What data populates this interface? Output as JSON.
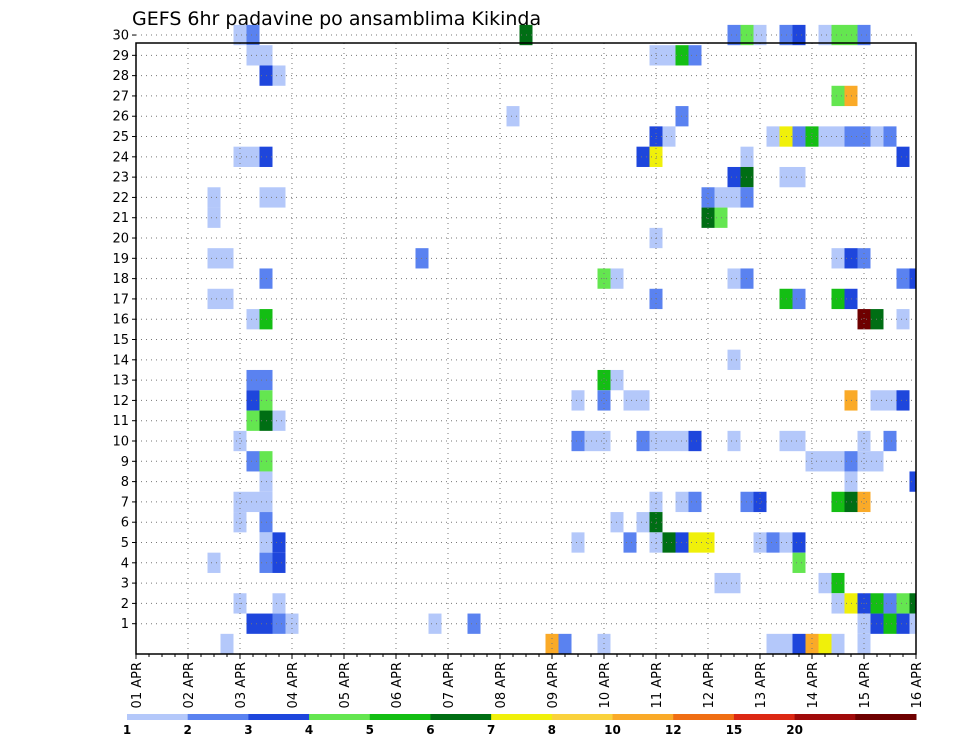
{
  "chart_data": {
    "type": "heatmap",
    "title": "GEFS 6hr padavine po ansamblima Kikinda",
    "xlabel": "",
    "ylabel": "",
    "x_tick_labels": [
      "01 APR",
      "02 APR",
      "03 APR",
      "04 APR",
      "05 APR",
      "06 APR",
      "07 APR",
      "08 APR",
      "09 APR",
      "10 APR",
      "11 APR",
      "12 APR",
      "13 APR",
      "14 APR",
      "15 APR",
      "16 APR"
    ],
    "x_unit": "6-hour step from 01 APR 00Z (4 steps per day)",
    "xlim": [
      0,
      60
    ],
    "y_tick_labels": [
      "1",
      "2",
      "3",
      "4",
      "5",
      "6",
      "7",
      "8",
      "9",
      "10",
      "11",
      "12",
      "13",
      "14",
      "15",
      "16",
      "17",
      "18",
      "19",
      "20",
      "21",
      "22",
      "23",
      "24",
      "25",
      "26",
      "27",
      "28",
      "29",
      "30"
    ],
    "ylim": [
      0,
      30
    ],
    "grid": true,
    "colorbar": {
      "levels": [
        "1",
        "2",
        "3",
        "4",
        "5",
        "6",
        "7",
        "8",
        "10",
        "12",
        "15",
        "20"
      ],
      "colors": [
        "#b4c8fa",
        "#5a82f0",
        "#1e46dc",
        "#64e650",
        "#14be14",
        "#006e14",
        "#f0f00a",
        "#fad23c",
        "#faaa28",
        "#f06e14",
        "#dc2814",
        "#a00a0a",
        "#6e0000"
      ]
    },
    "cells_comment": "Each cell: [time_step, member, color_index into colorbar.colors]",
    "cells": [
      [
        8,
        30,
        0
      ],
      [
        9,
        30,
        1
      ],
      [
        30,
        30,
        5
      ],
      [
        46,
        30,
        1
      ],
      [
        47,
        30,
        3
      ],
      [
        48,
        30,
        0
      ],
      [
        50,
        30,
        1
      ],
      [
        51,
        30,
        2
      ],
      [
        53,
        30,
        0
      ],
      [
        54,
        30,
        3
      ],
      [
        55,
        30,
        3
      ],
      [
        56,
        30,
        1
      ],
      [
        9,
        29,
        0
      ],
      [
        10,
        29,
        0
      ],
      [
        40,
        29,
        0
      ],
      [
        41,
        29,
        0
      ],
      [
        42,
        29,
        4
      ],
      [
        43,
        29,
        1
      ],
      [
        10,
        28,
        2
      ],
      [
        11,
        28,
        0
      ],
      [
        54,
        27,
        3
      ],
      [
        55,
        27,
        8
      ],
      [
        29,
        26,
        0
      ],
      [
        42,
        26,
        1
      ],
      [
        40,
        25,
        2
      ],
      [
        41,
        25,
        0
      ],
      [
        49,
        25,
        0
      ],
      [
        50,
        25,
        6
      ],
      [
        51,
        25,
        1
      ],
      [
        52,
        25,
        4
      ],
      [
        53,
        25,
        0
      ],
      [
        54,
        25,
        0
      ],
      [
        55,
        25,
        1
      ],
      [
        56,
        25,
        1
      ],
      [
        57,
        25,
        0
      ],
      [
        58,
        25,
        1
      ],
      [
        8,
        24,
        0
      ],
      [
        9,
        24,
        0
      ],
      [
        10,
        24,
        2
      ],
      [
        39,
        24,
        2
      ],
      [
        40,
        24,
        6
      ],
      [
        47,
        24,
        0
      ],
      [
        59,
        24,
        2
      ],
      [
        46,
        23,
        2
      ],
      [
        47,
        23,
        5
      ],
      [
        50,
        23,
        0
      ],
      [
        51,
        23,
        0
      ],
      [
        6,
        22,
        0
      ],
      [
        10,
        22,
        0
      ],
      [
        11,
        22,
        0
      ],
      [
        44,
        22,
        1
      ],
      [
        45,
        22,
        0
      ],
      [
        46,
        22,
        0
      ],
      [
        47,
        22,
        1
      ],
      [
        6,
        21,
        0
      ],
      [
        44,
        21,
        5
      ],
      [
        45,
        21,
        3
      ],
      [
        40,
        20,
        0
      ],
      [
        6,
        19,
        0
      ],
      [
        7,
        19,
        0
      ],
      [
        22,
        19,
        1
      ],
      [
        54,
        19,
        0
      ],
      [
        55,
        19,
        2
      ],
      [
        56,
        19,
        1
      ],
      [
        10,
        18,
        1
      ],
      [
        36,
        18,
        3
      ],
      [
        37,
        18,
        0
      ],
      [
        46,
        18,
        0
      ],
      [
        47,
        18,
        1
      ],
      [
        59,
        18,
        1
      ],
      [
        60,
        18,
        2
      ],
      [
        6,
        17,
        0
      ],
      [
        7,
        17,
        0
      ],
      [
        40,
        17,
        1
      ],
      [
        50,
        17,
        4
      ],
      [
        51,
        17,
        1
      ],
      [
        54,
        17,
        4
      ],
      [
        55,
        17,
        2
      ],
      [
        9,
        16,
        0
      ],
      [
        10,
        16,
        4
      ],
      [
        56,
        16,
        12
      ],
      [
        57,
        16,
        5
      ],
      [
        59,
        16,
        0
      ],
      [
        46,
        14,
        0
      ],
      [
        9,
        13,
        1
      ],
      [
        10,
        13,
        1
      ],
      [
        36,
        13,
        4
      ],
      [
        37,
        13,
        0
      ],
      [
        9,
        12,
        2
      ],
      [
        10,
        12,
        3
      ],
      [
        34,
        12,
        0
      ],
      [
        36,
        12,
        1
      ],
      [
        38,
        12,
        0
      ],
      [
        39,
        12,
        0
      ],
      [
        55,
        12,
        8
      ],
      [
        57,
        12,
        0
      ],
      [
        58,
        12,
        0
      ],
      [
        59,
        12,
        2
      ],
      [
        9,
        11,
        3
      ],
      [
        10,
        11,
        5
      ],
      [
        11,
        11,
        0
      ],
      [
        8,
        10,
        0
      ],
      [
        34,
        10,
        1
      ],
      [
        35,
        10,
        0
      ],
      [
        36,
        10,
        0
      ],
      [
        39,
        10,
        1
      ],
      [
        40,
        10,
        0
      ],
      [
        41,
        10,
        0
      ],
      [
        42,
        10,
        0
      ],
      [
        43,
        10,
        2
      ],
      [
        46,
        10,
        0
      ],
      [
        50,
        10,
        0
      ],
      [
        51,
        10,
        0
      ],
      [
        56,
        10,
        0
      ],
      [
        58,
        10,
        1
      ],
      [
        9,
        9,
        1
      ],
      [
        10,
        9,
        3
      ],
      [
        52,
        9,
        0
      ],
      [
        53,
        9,
        0
      ],
      [
        54,
        9,
        0
      ],
      [
        55,
        9,
        1
      ],
      [
        56,
        9,
        0
      ],
      [
        57,
        9,
        0
      ],
      [
        10,
        8,
        0
      ],
      [
        55,
        8,
        0
      ],
      [
        60,
        8,
        2
      ],
      [
        8,
        7,
        0
      ],
      [
        9,
        7,
        0
      ],
      [
        10,
        7,
        0
      ],
      [
        40,
        7,
        0
      ],
      [
        42,
        7,
        0
      ],
      [
        43,
        7,
        1
      ],
      [
        47,
        7,
        1
      ],
      [
        48,
        7,
        2
      ],
      [
        54,
        7,
        4
      ],
      [
        55,
        7,
        5
      ],
      [
        56,
        7,
        8
      ],
      [
        8,
        6,
        0
      ],
      [
        10,
        6,
        1
      ],
      [
        37,
        6,
        0
      ],
      [
        39,
        6,
        0
      ],
      [
        40,
        6,
        5
      ],
      [
        10,
        5,
        0
      ],
      [
        11,
        5,
        2
      ],
      [
        34,
        5,
        0
      ],
      [
        38,
        5,
        1
      ],
      [
        40,
        5,
        0
      ],
      [
        41,
        5,
        5
      ],
      [
        42,
        5,
        2
      ],
      [
        43,
        5,
        6
      ],
      [
        44,
        5,
        6
      ],
      [
        48,
        5,
        0
      ],
      [
        49,
        5,
        1
      ],
      [
        50,
        5,
        0
      ],
      [
        51,
        5,
        2
      ],
      [
        6,
        4,
        0
      ],
      [
        10,
        4,
        1
      ],
      [
        11,
        4,
        2
      ],
      [
        51,
        4,
        3
      ],
      [
        45,
        3,
        0
      ],
      [
        46,
        3,
        0
      ],
      [
        53,
        3,
        0
      ],
      [
        54,
        3,
        4
      ],
      [
        8,
        2,
        0
      ],
      [
        11,
        2,
        0
      ],
      [
        54,
        2,
        0
      ],
      [
        55,
        2,
        6
      ],
      [
        56,
        2,
        2
      ],
      [
        57,
        2,
        4
      ],
      [
        58,
        2,
        1
      ],
      [
        59,
        2,
        3
      ],
      [
        60,
        2,
        5
      ],
      [
        9,
        1,
        2
      ],
      [
        10,
        1,
        2
      ],
      [
        11,
        1,
        1
      ],
      [
        12,
        1,
        0
      ],
      [
        23,
        1,
        0
      ],
      [
        26,
        1,
        1
      ],
      [
        56,
        1,
        0
      ],
      [
        57,
        1,
        2
      ],
      [
        58,
        1,
        4
      ],
      [
        59,
        1,
        2
      ],
      [
        60,
        1,
        0
      ],
      [
        7,
        0,
        0
      ],
      [
        32,
        0,
        8
      ],
      [
        33,
        0,
        1
      ],
      [
        36,
        0,
        0
      ],
      [
        49,
        0,
        0
      ],
      [
        50,
        0,
        0
      ],
      [
        51,
        0,
        2
      ],
      [
        52,
        0,
        8
      ],
      [
        53,
        0,
        6
      ],
      [
        54,
        0,
        0
      ],
      [
        56,
        0,
        0
      ]
    ]
  }
}
